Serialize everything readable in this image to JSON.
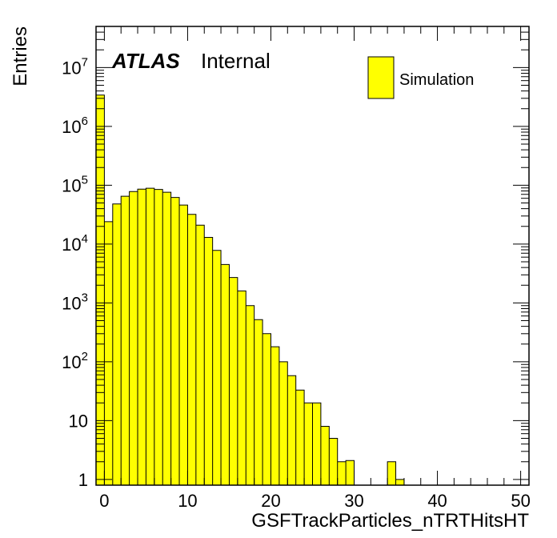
{
  "chart_data": {
    "type": "histogram",
    "xlabel": "GSFTrackParticles_nTRTHitsHT",
    "ylabel": "Entries",
    "xlim": [
      -1,
      51
    ],
    "ylim": [
      0.8,
      50000000
    ],
    "yscale": "log",
    "bin_width": 1,
    "bin_edges_start": -1,
    "x_ticks": [
      "0",
      "10",
      "20",
      "30",
      "40",
      "50"
    ],
    "y_ticks": [
      {
        "value": 1,
        "base": "1",
        "exp": ""
      },
      {
        "value": 10,
        "base": "10",
        "exp": ""
      },
      {
        "value": 100,
        "base": "10",
        "exp": "2"
      },
      {
        "value": 1000,
        "base": "10",
        "exp": "3"
      },
      {
        "value": 10000,
        "base": "10",
        "exp": "4"
      },
      {
        "value": 100000,
        "base": "10",
        "exp": "5"
      },
      {
        "value": 1000000,
        "base": "10",
        "exp": "6"
      },
      {
        "value": 10000000,
        "base": "10",
        "exp": "7"
      }
    ],
    "values": [
      3400000,
      24000,
      48000,
      65000,
      78000,
      86000,
      89000,
      85000,
      76000,
      62000,
      46000,
      32000,
      21000,
      13000,
      7800,
      4500,
      2700,
      1600,
      900,
      520,
      300,
      180,
      100,
      58,
      33,
      20,
      20,
      8,
      5,
      2,
      2.1,
      0,
      0,
      0,
      0,
      2,
      1
    ],
    "series": [
      {
        "name": "Simulation",
        "color": "#ffff00"
      }
    ],
    "legend": "top-right",
    "grid": false
  },
  "annotation": {
    "atlas": "ATLAS",
    "status": "Internal"
  }
}
